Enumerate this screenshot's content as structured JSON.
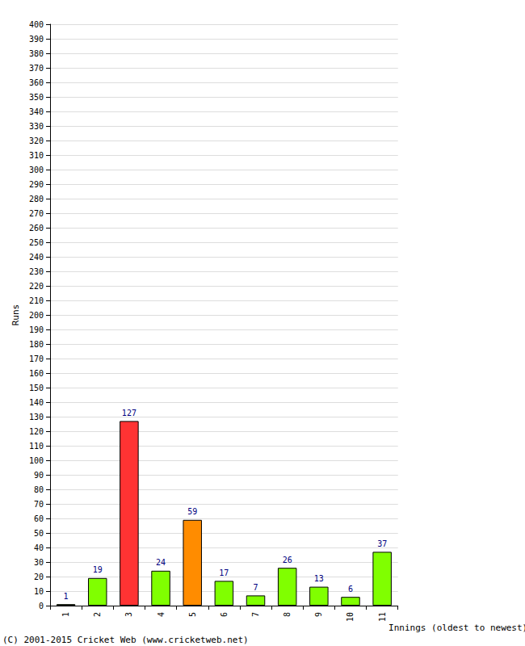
{
  "chart_data": {
    "type": "bar",
    "x_label": "Innings (oldest to newest)",
    "y_label": "Runs",
    "annotations": [
      "(C) 2001-2015 Cricket Web (www.cricketweb.net)"
    ],
    "categories": [
      "1",
      "2",
      "3",
      "4",
      "5",
      "6",
      "7",
      "8",
      "9",
      "10",
      "11"
    ],
    "values": [
      1,
      19,
      127,
      24,
      59,
      17,
      7,
      26,
      13,
      6,
      37
    ],
    "colors": [
      "#80ff00",
      "#80ff00",
      "#ff3333",
      "#80ff00",
      "#ff8c00",
      "#80ff00",
      "#80ff00",
      "#80ff00",
      "#80ff00",
      "#80ff00",
      "#80ff00"
    ],
    "ylim": [
      0,
      400
    ],
    "yticks": [
      0,
      10,
      20,
      30,
      40,
      50,
      60,
      70,
      80,
      90,
      100,
      110,
      120,
      130,
      140,
      150,
      160,
      170,
      180,
      190,
      200,
      210,
      220,
      230,
      240,
      250,
      260,
      270,
      280,
      290,
      300,
      310,
      320,
      330,
      340,
      350,
      360,
      370,
      380,
      390,
      400
    ],
    "grid": true,
    "data_labels": true
  }
}
